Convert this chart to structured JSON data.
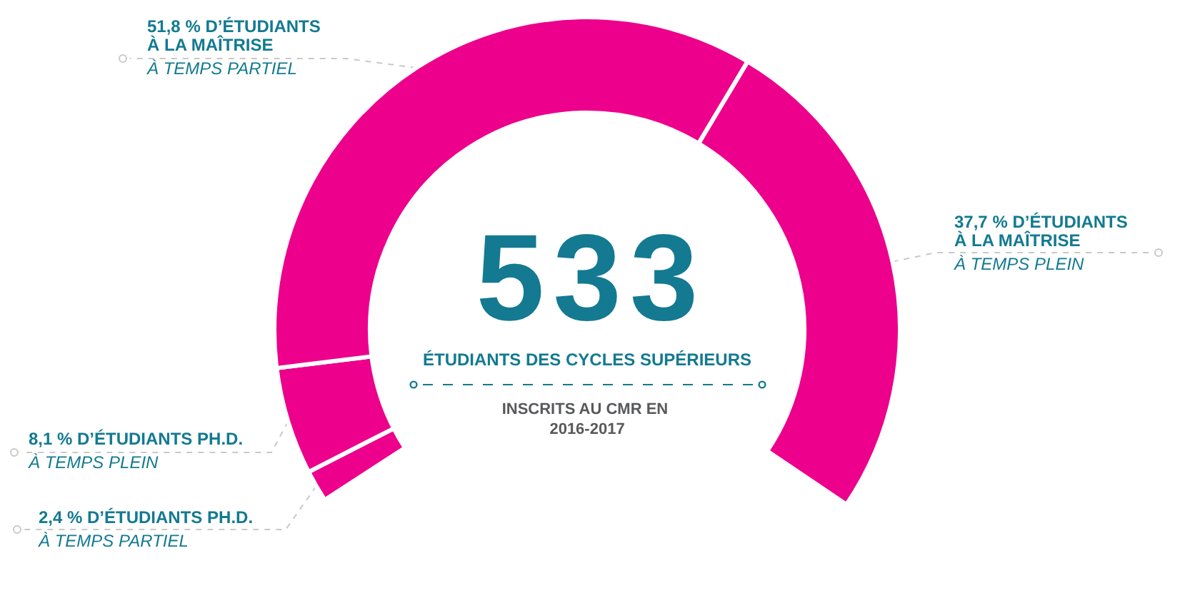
{
  "chart_data": {
    "type": "donut",
    "title": "533",
    "subtitle": "ÉTUDIANTS DES CYCLES SUPÉRIEURS",
    "annotations": [
      "INSCRITS AU CMR EN 2016-2017"
    ],
    "categories": [
      "D’ÉTUDIANTS PH.D.\nÀ TEMPS PARTIEL",
      "D’ÉTUDIANTS PH.D.\nÀ TEMPS PLEIN",
      "D’ÉTUDIANTS\nÀ LA MAÎTRISE\nÀ TEMPS PARTIEL",
      "D’ÉTUDIANTS\nÀ LA MAÎTRISE\nÀ TEMPS PLEIN"
    ],
    "values": [
      2.4,
      8.1,
      51.8,
      37.7
    ],
    "value_labels": [
      "2,4 %",
      "8,1 %",
      "51,8 %",
      "37,7 %"
    ],
    "colors": [
      "#ec008c",
      "#ec008c",
      "#ec008c",
      "#ec008c"
    ]
  }
}
